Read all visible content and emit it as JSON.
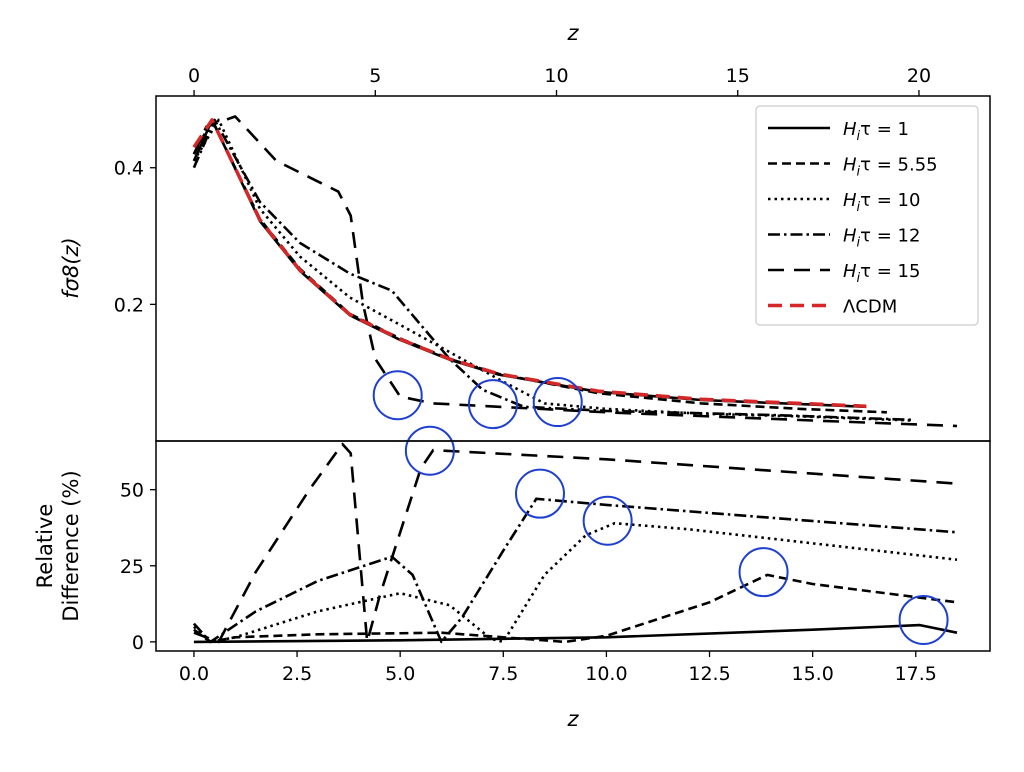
{
  "chart_data": [
    {
      "type": "line",
      "panel": "upper",
      "ylabel": "fσ8(z)",
      "top_xlabel": "z",
      "top_xticks": [
        "0",
        "5",
        "10",
        "15",
        "20"
      ],
      "top_xlim": [
        -1.05,
        21.96
      ],
      "yticks": [
        "0.2",
        "0.4"
      ],
      "ytick_values": [
        0.2,
        0.4
      ],
      "xlim": [
        -0.92,
        19.3
      ],
      "ylim": [
        0,
        0.505
      ],
      "legend_position": "top-right",
      "series": [
        {
          "name": "H_iτ = 1",
          "label_main": "H",
          "label_sub": "i",
          "label_rest": "τ = 1",
          "style": "solid",
          "color": "#000000",
          "points": [
            [
              0,
              0.41
            ],
            [
              0.44,
              0.47
            ],
            [
              1.6,
              0.322
            ],
            [
              2.57,
              0.249
            ],
            [
              3.78,
              0.184
            ],
            [
              5,
              0.148
            ],
            [
              6.2,
              0.119
            ],
            [
              7.4,
              0.097
            ],
            [
              9.8,
              0.072
            ],
            [
              12.3,
              0.06
            ],
            [
              14.7,
              0.054
            ],
            [
              16.3,
              0.05
            ]
          ]
        },
        {
          "name": "H_iτ = 5.55",
          "label_main": "H",
          "label_sub": "i",
          "label_rest": "τ = 5.55",
          "style": "dashed",
          "color": "#000000",
          "points": [
            [
              0,
              0.42
            ],
            [
              0.44,
              0.47
            ],
            [
              1.6,
              0.325
            ],
            [
              2.57,
              0.252
            ],
            [
              3.78,
              0.186
            ],
            [
              5,
              0.15
            ],
            [
              6.2,
              0.12
            ],
            [
              7.4,
              0.098
            ],
            [
              9.8,
              0.07
            ],
            [
              12.3,
              0.055
            ],
            [
              14.7,
              0.047
            ],
            [
              16.8,
              0.042
            ]
          ]
        },
        {
          "name": "H_iτ = 10",
          "label_main": "H",
          "label_sub": "i",
          "label_rest": "τ = 10",
          "style": "dotted",
          "color": "#000000",
          "points": [
            [
              0,
              0.41
            ],
            [
              0.6,
              0.47
            ],
            [
              1.6,
              0.34
            ],
            [
              2.57,
              0.27
            ],
            [
              3.78,
              0.21
            ],
            [
              5,
              0.17
            ],
            [
              6.2,
              0.13
            ],
            [
              7.4,
              0.09
            ],
            [
              8.5,
              0.055
            ],
            [
              10,
              0.047
            ],
            [
              12.3,
              0.04
            ],
            [
              14.7,
              0.036
            ],
            [
              17.4,
              0.03
            ]
          ]
        },
        {
          "name": "H_iτ = 12",
          "label_main": "H",
          "label_sub": "i",
          "label_rest": "τ = 12",
          "style": "dashdot",
          "color": "#000000",
          "points": [
            [
              0,
              0.4
            ],
            [
              0.5,
              0.47
            ],
            [
              1.6,
              0.35
            ],
            [
              2.57,
              0.29
            ],
            [
              3.78,
              0.245
            ],
            [
              4.8,
              0.22
            ],
            [
              5.5,
              0.17
            ],
            [
              6.2,
              0.12
            ],
            [
              7,
              0.075
            ],
            [
              8,
              0.05
            ],
            [
              10,
              0.044
            ],
            [
              14,
              0.038
            ],
            [
              17.4,
              0.031
            ]
          ]
        },
        {
          "name": "H_iτ = 15",
          "label_main": "H",
          "label_sub": "i",
          "label_rest": "τ = 15",
          "style": "longdash",
          "color": "#000000",
          "points": [
            [
              0,
              0.42
            ],
            [
              0.3,
              0.46
            ],
            [
              1,
              0.475
            ],
            [
              2,
              0.41
            ],
            [
              3,
              0.38
            ],
            [
              3.5,
              0.365
            ],
            [
              3.8,
              0.33
            ],
            [
              4.1,
              0.2
            ],
            [
              4.4,
              0.12
            ],
            [
              5,
              0.065
            ],
            [
              5.8,
              0.055
            ],
            [
              10,
              0.042
            ],
            [
              15,
              0.03
            ],
            [
              18.5,
              0.022
            ]
          ]
        },
        {
          "name": "ΛCDM",
          "label_main": "ΛCDM",
          "label_sub": "",
          "label_rest": "",
          "style": "reddash",
          "color": "#d62728",
          "points": [
            [
              0,
              0.43
            ],
            [
              0.44,
              0.47
            ],
            [
              1.6,
              0.324
            ],
            [
              2.57,
              0.25
            ],
            [
              3.78,
              0.185
            ],
            [
              5,
              0.149
            ],
            [
              6.2,
              0.12
            ],
            [
              7.4,
              0.098
            ],
            [
              9.8,
              0.073
            ],
            [
              12.3,
              0.061
            ],
            [
              14.7,
              0.055
            ],
            [
              16.3,
              0.051
            ]
          ]
        }
      ],
      "annotations": {
        "type": "circle",
        "color": "#1f3fd0",
        "centers": [
          [
            4.94,
            0.067
          ],
          [
            7.25,
            0.054
          ],
          [
            8.82,
            0.057
          ]
        ]
      }
    },
    {
      "type": "line",
      "panel": "lower",
      "ylabel_line1": "Relative",
      "ylabel_line2": "Difference (%)",
      "xlabel": "z",
      "xticks": [
        "0.0",
        "2.5",
        "5.0",
        "7.5",
        "10.0",
        "12.5",
        "15.0",
        "17.5"
      ],
      "xtick_values": [
        0,
        2.5,
        5,
        7.5,
        10,
        12.5,
        15,
        17.5
      ],
      "yticks": [
        "0",
        "25",
        "50"
      ],
      "ytick_values": [
        0,
        25,
        50
      ],
      "xlim": [
        -0.92,
        19.3
      ],
      "ylim": [
        -3,
        66
      ],
      "series": [
        {
          "name": "H_iτ = 1",
          "style": "solid",
          "points": [
            [
              0,
              0
            ],
            [
              5,
              0.5
            ],
            [
              10,
              1.5
            ],
            [
              15,
              4
            ],
            [
              17.6,
              5.5
            ],
            [
              18.5,
              3
            ]
          ]
        },
        {
          "name": "H_iτ = 5.55",
          "style": "dashed",
          "points": [
            [
              0,
              4
            ],
            [
              0.4,
              0
            ],
            [
              1,
              1.5
            ],
            [
              3,
              2.5
            ],
            [
              6,
              3
            ],
            [
              8,
              1
            ],
            [
              9,
              0
            ],
            [
              10,
              2
            ],
            [
              12.5,
              13
            ],
            [
              13.9,
              22
            ],
            [
              15,
              19
            ],
            [
              18.5,
              13
            ]
          ]
        },
        {
          "name": "H_iτ = 10",
          "style": "dotted",
          "points": [
            [
              0,
              5
            ],
            [
              0.4,
              0
            ],
            [
              1,
              1.5
            ],
            [
              3,
              10
            ],
            [
              5,
              16
            ],
            [
              6.2,
              12
            ],
            [
              7.2,
              1
            ],
            [
              7.5,
              0
            ],
            [
              8.5,
              22
            ],
            [
              9.5,
              35
            ],
            [
              10.2,
              39
            ],
            [
              12,
              37
            ],
            [
              18.5,
              27
            ]
          ]
        },
        {
          "name": "H_iτ = 12",
          "style": "dashdot",
          "points": [
            [
              0,
              6
            ],
            [
              0.4,
              0
            ],
            [
              1.5,
              10
            ],
            [
              3,
              20
            ],
            [
              4.8,
              28
            ],
            [
              5.3,
              22
            ],
            [
              6,
              0
            ],
            [
              6.5,
              8
            ],
            [
              7.5,
              30
            ],
            [
              8.3,
              47
            ],
            [
              10,
              45
            ],
            [
              18.5,
              36
            ]
          ]
        },
        {
          "name": "H_iτ = 15",
          "style": "longdash",
          "points": [
            [
              0,
              3
            ],
            [
              0.6,
              0
            ],
            [
              1.5,
              23
            ],
            [
              2.8,
              50
            ],
            [
              3.6,
              65
            ],
            [
              3.8,
              62
            ],
            [
              4.2,
              0
            ],
            [
              4.5,
              15
            ],
            [
              5.5,
              57
            ],
            [
              5.8,
              63
            ],
            [
              10,
              60
            ],
            [
              18.5,
              52
            ]
          ]
        }
      ],
      "annotations": {
        "type": "circle",
        "color": "#1f3fd0",
        "centers": [
          [
            5.72,
            62.8
          ],
          [
            8.39,
            48.7
          ],
          [
            10.03,
            39.8
          ],
          [
            13.81,
            22.9
          ],
          [
            17.69,
            7.2
          ]
        ]
      }
    }
  ]
}
